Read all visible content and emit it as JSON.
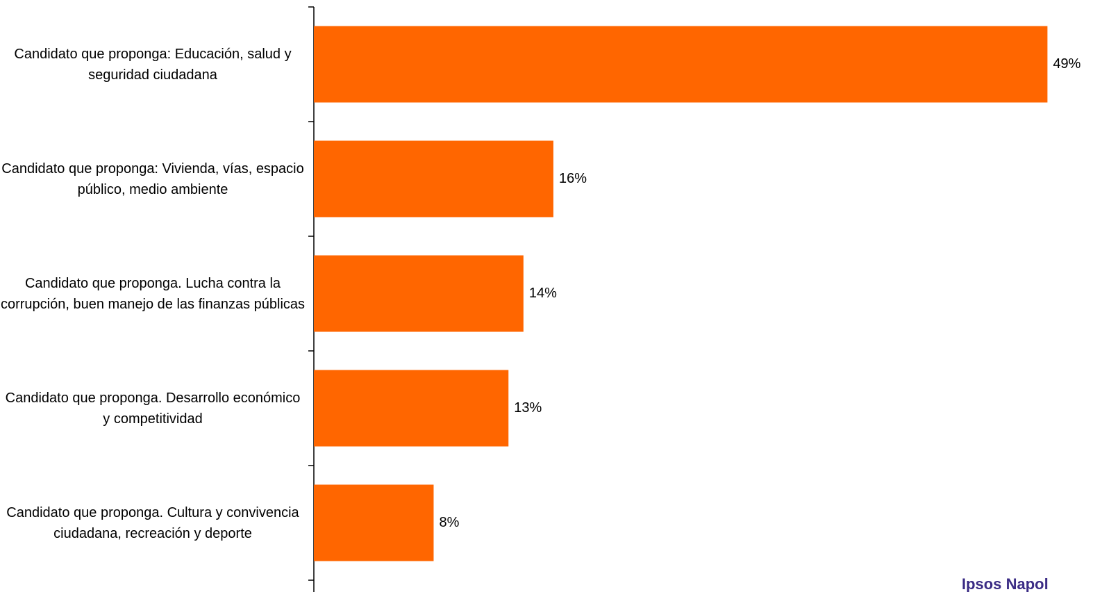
{
  "chart_data": {
    "type": "barh",
    "categories": [
      "Candidato que proponga: Educación, salud y seguridad ciudadana",
      "Candidato que proponga: Vivienda, vías, espacio público, medio ambiente",
      "Candidato que proponga. Lucha contra la corrupción, buen manejo de las finanzas públicas",
      "Candidato que proponga. Desarrollo económico y competitividad",
      "Candidato que proponga. Cultura y convivencia ciudadana, recreación y deporte"
    ],
    "values": [
      49,
      16,
      14,
      13,
      8
    ],
    "value_labels": [
      "49%",
      "16%",
      "14%",
      "13%",
      "8%"
    ],
    "color": "#ff6600",
    "xlim": [
      0,
      50
    ],
    "annotations": [
      "Ipsos Napol"
    ]
  }
}
